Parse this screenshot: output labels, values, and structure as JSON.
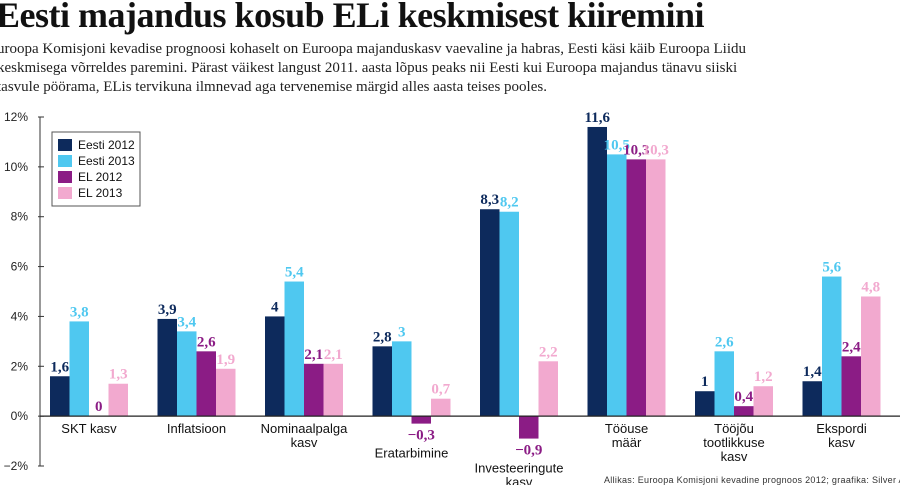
{
  "header": {
    "title": "Eesti majandus kosub ELi keskmisest kiiremini",
    "subtitle_lines": [
      "uroopa Komisjoni kevadise prognoosi kohaselt on Euroopa majanduskasv vaevaline ja habras, Eesti käsi käib Euroopa Liidu",
      "keskmisega võrreldes paremini. Pärast väikest langust 2011. aasta lõpus peaks nii Eesti kui Euroopa majandus tänavu siiski",
      "tasvule pöörama, ELis tervikuna ilmnevad aga tervenemise märgid alles aasta teises pooles."
    ]
  },
  "source": "Allikas: Euroopa Komisjoni kevadine prognoos 2012; graafika: Silver A",
  "colors": {
    "Eesti 2012": "#0d2a5c",
    "Eesti 2013": "#4fc8f0",
    "EL 2012": "#8b1c85",
    "EL 2013": "#f2a9cf"
  },
  "chart_data": {
    "type": "bar",
    "ylim": [
      -2,
      12
    ],
    "yticks": [
      -2,
      0,
      2,
      4,
      6,
      8,
      10,
      12
    ],
    "ytick_labels": [
      "−2%",
      "0%",
      "2%",
      "4%",
      "6%",
      "8%",
      "10%",
      "12%"
    ],
    "legend_position": "top-left",
    "grid": false,
    "categories": [
      [
        "SKT kasv"
      ],
      [
        "Inflatsioon"
      ],
      [
        "Nominaalpalga",
        "kasv"
      ],
      [
        "Eratarbimine"
      ],
      [
        "Investeeringute",
        "kasv"
      ],
      [
        "Tööuse",
        "määr"
      ],
      [
        "Tööjõu",
        "tootlikkuse",
        "kasv"
      ],
      [
        "Ekspordi",
        "kasv"
      ]
    ],
    "series": [
      {
        "name": "Eesti 2012",
        "values": [
          1.6,
          3.9,
          4,
          2.8,
          8.3,
          11.6,
          1,
          1.4
        ],
        "labels": [
          "1,6",
          "3,9",
          "4",
          "2,8",
          "8,3",
          "11,6",
          "1",
          "1,4"
        ]
      },
      {
        "name": "Eesti 2013",
        "values": [
          3.8,
          3.4,
          5.4,
          3,
          8.2,
          10.5,
          2.6,
          5.6
        ],
        "labels": [
          "3,8",
          "3,4",
          "5,4",
          "3",
          "8,2",
          "10,5",
          "2,6",
          "5,6"
        ]
      },
      {
        "name": "EL 2012",
        "values": [
          0,
          2.6,
          2.1,
          -0.3,
          -0.9,
          10.3,
          0.4,
          2.4
        ],
        "labels": [
          "0",
          "2,6",
          "2,1",
          "−0,3",
          "−0,9",
          "10,3",
          "0,4",
          "2,4"
        ]
      },
      {
        "name": "EL 2013",
        "values": [
          1.3,
          1.9,
          2.1,
          0.7,
          2.2,
          10.3,
          1.2,
          4.8
        ],
        "labels": [
          "1,3",
          "1,9",
          "2,1",
          "0,7",
          "2,2",
          "10,3",
          "1,2",
          "4,8"
        ]
      }
    ]
  }
}
